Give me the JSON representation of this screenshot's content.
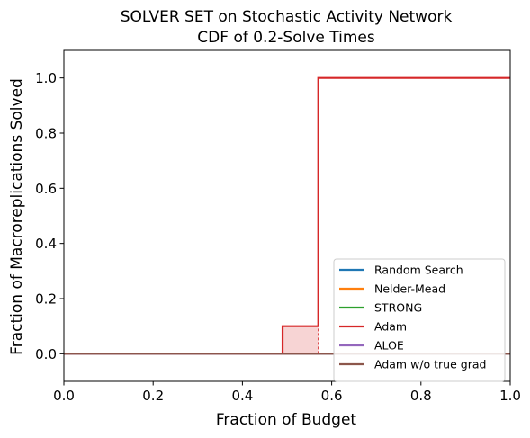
{
  "chart_data": {
    "type": "line",
    "title_line1": "SOLVER SET on Stochastic Activity Network",
    "title_line2": "CDF of 0.2-Solve Times",
    "xlabel": "Fraction of Budget",
    "ylabel": "Fraction of Macroreplications Solved",
    "xlim": [
      0,
      1
    ],
    "ylim": [
      -0.1,
      1.1
    ],
    "xticks": [
      0.0,
      0.2,
      0.4,
      0.6,
      0.8,
      1.0
    ],
    "xtick_labels": [
      "0.0",
      "0.2",
      "0.4",
      "0.6",
      "0.8",
      "1.0"
    ],
    "yticks": [
      0.0,
      0.2,
      0.4,
      0.6,
      0.8,
      1.0
    ],
    "ytick_labels": [
      "0.0",
      "0.2",
      "0.4",
      "0.6",
      "0.8",
      "1.0"
    ],
    "grid": false,
    "legend_position": "lower-right",
    "series": [
      {
        "name": "Random Search",
        "color": "#1f77b4",
        "x": [
          0,
          1
        ],
        "y": [
          0,
          0
        ]
      },
      {
        "name": "Nelder-Mead",
        "color": "#ff7f0e",
        "x": [
          0,
          1
        ],
        "y": [
          0,
          0
        ]
      },
      {
        "name": "STRONG",
        "color": "#2ca02c",
        "x": [
          0,
          1
        ],
        "y": [
          0,
          0
        ]
      },
      {
        "name": "Adam",
        "color": "#d62728",
        "x": [
          0,
          0.49,
          0.49,
          0.57,
          0.57,
          1.0
        ],
        "y": [
          0,
          0,
          0.1,
          0.1,
          1.0,
          1.0
        ]
      },
      {
        "name": "ALOE",
        "color": "#9467bd",
        "x": [
          0,
          1
        ],
        "y": [
          0,
          0
        ]
      },
      {
        "name": "Adam w/o true grad",
        "color": "#8c564b",
        "x": [
          0,
          1
        ],
        "y": [
          0,
          0
        ]
      }
    ],
    "confidence_band": {
      "series": "Adam",
      "color": "#d62728",
      "x": [
        0.49,
        0.57
      ],
      "lower": [
        0,
        0
      ],
      "upper": [
        0.1,
        0.1
      ]
    },
    "dashed_marker": {
      "series": "Adam",
      "x": 0.57,
      "y_from": 0,
      "y_to": 0.1
    }
  }
}
